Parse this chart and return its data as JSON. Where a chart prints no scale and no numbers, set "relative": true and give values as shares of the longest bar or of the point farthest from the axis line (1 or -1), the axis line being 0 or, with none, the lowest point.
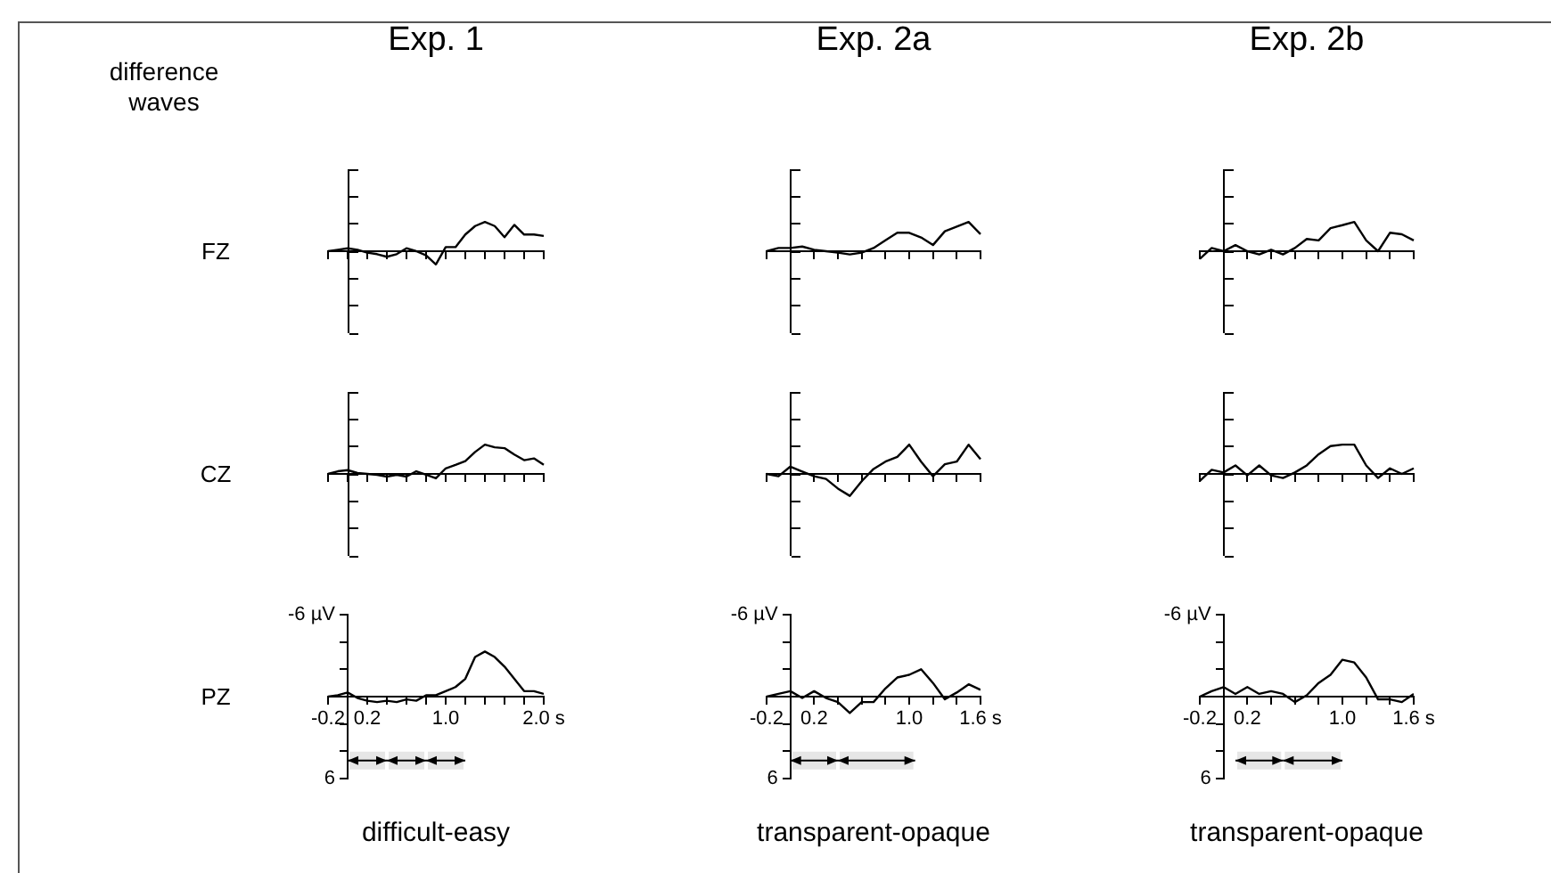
{
  "chart_data": [
    {
      "type": "line",
      "title": "Exp. 1",
      "ylabel": "FZ",
      "annotations": [
        "difference waves"
      ],
      "color": "#000000",
      "relative": true,
      "categories": [
        null,
        null,
        null,
        null,
        null,
        null,
        null,
        null,
        null,
        null,
        null,
        null,
        null,
        null,
        null,
        null,
        null,
        null,
        null,
        null,
        null,
        null,
        null
      ],
      "values": [
        0,
        0.05,
        0.1,
        0.05,
        -0.05,
        -0.1,
        -0.19,
        -0.1,
        0.1,
        0,
        -0.14,
        -0.45,
        0.14,
        0.14,
        0.57,
        0.86,
        1,
        0.86,
        0.48,
        0.9,
        0.57,
        0.57,
        0.52
      ]
    },
    {
      "type": "line",
      "title": "Exp. 2a",
      "color": "#000000",
      "relative": true,
      "categories": [
        null,
        null,
        null,
        null,
        null,
        null,
        null,
        null,
        null,
        null,
        null,
        null,
        null,
        null,
        null,
        null,
        null,
        null,
        null
      ],
      "values": [
        0,
        0.11,
        0.11,
        0.16,
        0.05,
        0,
        -0.05,
        -0.11,
        -0.05,
        0.11,
        0.37,
        0.63,
        0.63,
        0.47,
        0.21,
        0.68,
        0.84,
        1,
        0.58
      ]
    },
    {
      "type": "line",
      "title": "Exp. 2b",
      "color": "#000000",
      "relative": true,
      "categories": [
        null,
        null,
        null,
        null,
        null,
        null,
        null,
        null,
        null,
        null,
        null,
        null,
        null,
        null,
        null,
        null,
        null,
        null,
        null
      ],
      "values": [
        -0.26,
        0.11,
        0,
        0.21,
        0,
        -0.11,
        0.05,
        -0.11,
        0.11,
        0.42,
        0.37,
        0.79,
        0.89,
        1,
        0.37,
        0,
        0.63,
        0.58,
        0.37
      ]
    },
    {
      "type": "line",
      "ylabel": "CZ",
      "color": "#000000",
      "relative": true,
      "categories": [
        null,
        null,
        null,
        null,
        null,
        null,
        null,
        null,
        null,
        null,
        null,
        null,
        null,
        null,
        null,
        null,
        null,
        null,
        null,
        null,
        null,
        null,
        null
      ],
      "values": [
        0,
        0.09,
        0.13,
        0.03,
        0,
        -0.03,
        -0.09,
        -0.03,
        -0.09,
        0.09,
        -0.03,
        -0.15,
        0.19,
        0.31,
        0.44,
        0.75,
        1,
        0.91,
        0.88,
        0.66,
        0.47,
        0.53,
        0.31
      ]
    },
    {
      "type": "line",
      "color": "#000000",
      "relative": true,
      "categories": [
        null,
        null,
        null,
        null,
        null,
        null,
        null,
        null,
        null,
        null,
        null,
        null,
        null,
        null,
        null,
        null,
        null,
        null,
        null
      ],
      "values": [
        0,
        -0.08,
        0.25,
        0.08,
        -0.08,
        -0.17,
        -0.5,
        -0.75,
        -0.25,
        0.17,
        0.42,
        0.58,
        1,
        0.42,
        -0.08,
        0.33,
        0.42,
        1,
        0.5
      ]
    },
    {
      "type": "line",
      "color": "#000000",
      "relative": true,
      "categories": [
        null,
        null,
        null,
        null,
        null,
        null,
        null,
        null,
        null,
        null,
        null,
        null,
        null,
        null,
        null,
        null,
        null,
        null,
        null
      ],
      "values": [
        -0.24,
        0.14,
        0.05,
        0.29,
        -0.05,
        0.29,
        -0.05,
        -0.14,
        0.05,
        0.29,
        0.67,
        0.95,
        1,
        1,
        0.29,
        -0.14,
        0.19,
        0,
        0.19
      ]
    },
    {
      "type": "line",
      "ylabel": "PZ",
      "xlabel": "difficult-easy",
      "color": "#000000",
      "x": [
        -0.2,
        -0.1,
        0,
        0.1,
        0.2,
        0.3,
        0.4,
        0.5,
        0.6,
        0.7,
        0.8,
        0.9,
        1.0,
        1.1,
        1.2,
        1.3,
        1.4,
        1.5,
        1.6,
        1.7,
        1.8,
        1.9,
        2.0
      ],
      "values": [
        0,
        -0.1,
        -0.3,
        0.1,
        0.3,
        0.4,
        0.3,
        0.4,
        0.2,
        0.3,
        -0.1,
        -0.1,
        -0.4,
        -0.7,
        -1.3,
        -2.9,
        -3.3,
        -2.9,
        -2.2,
        -1.3,
        -0.4,
        -0.4,
        -0.2
      ],
      "xlim": [
        -0.2,
        2.0
      ],
      "ylim": [
        6,
        -6
      ],
      "xticks": [
        {
          "value": -0.2,
          "label": "-0.2"
        },
        {
          "value": 0,
          "label": null
        },
        {
          "value": 0.2,
          "label": "0.2"
        },
        {
          "value": 0.4,
          "label": null
        },
        {
          "value": 0.6,
          "label": null
        },
        {
          "value": 0.8,
          "label": null
        },
        {
          "value": 1.0,
          "label": "1.0"
        },
        {
          "value": 1.2,
          "label": null
        },
        {
          "value": 1.4,
          "label": null
        },
        {
          "value": 1.6,
          "label": null
        },
        {
          "value": 1.8,
          "label": null
        },
        {
          "value": 2.0,
          "label": "2.0 s"
        }
      ],
      "yticks": [
        {
          "value": -6,
          "label": "-6 µV"
        },
        {
          "value": -4,
          "label": null
        },
        {
          "value": -2,
          "label": null
        },
        {
          "value": 0,
          "label": null
        },
        {
          "value": 2,
          "label": null
        },
        {
          "value": 4,
          "label": null
        },
        {
          "value": 6,
          "label": "6"
        }
      ],
      "bands": [
        {
          "axis": "x",
          "from": 0,
          "to": 0.4,
          "color": "#e6e6e6"
        },
        {
          "axis": "x",
          "from": 0.4,
          "to": 0.8,
          "color": "#e6e6e6"
        },
        {
          "axis": "x",
          "from": 0.8,
          "to": 1.2,
          "color": "#e6e6e6"
        }
      ]
    },
    {
      "type": "line",
      "xlabel": "transparent-opaque",
      "color": "#000000",
      "x": [
        -0.2,
        -0.1,
        0,
        0.1,
        0.2,
        0.3,
        0.4,
        0.5,
        0.6,
        0.7,
        0.8,
        0.9,
        1.0,
        1.1,
        1.2,
        1.3,
        1.4,
        1.5,
        1.6
      ],
      "values": [
        0,
        -0.2,
        -0.4,
        0.1,
        -0.4,
        0.1,
        0.4,
        1.2,
        0.4,
        0.4,
        -0.6,
        -1.4,
        -1.6,
        -2.0,
        -1.0,
        0.2,
        -0.3,
        -0.9,
        -0.5
      ],
      "xlim": [
        -0.2,
        1.6
      ],
      "ylim": [
        6,
        -6
      ],
      "xticks": [
        {
          "value": -0.2,
          "label": "-0.2"
        },
        {
          "value": 0,
          "label": null
        },
        {
          "value": 0.2,
          "label": "0.2"
        },
        {
          "value": 0.4,
          "label": null
        },
        {
          "value": 0.6,
          "label": null
        },
        {
          "value": 0.8,
          "label": null
        },
        {
          "value": 1.0,
          "label": "1.0"
        },
        {
          "value": 1.2,
          "label": null
        },
        {
          "value": 1.4,
          "label": null
        },
        {
          "value": 1.6,
          "label": "1.6 s"
        }
      ],
      "yticks": [
        {
          "value": -6,
          "label": "-6 µV"
        },
        {
          "value": -4,
          "label": null
        },
        {
          "value": -2,
          "label": null
        },
        {
          "value": 0,
          "label": null
        },
        {
          "value": 2,
          "label": null
        },
        {
          "value": 4,
          "label": null
        },
        {
          "value": 6,
          "label": "6"
        }
      ],
      "bands": [
        {
          "axis": "x",
          "from": 0,
          "to": 0.4,
          "color": "#e6e6e6"
        },
        {
          "axis": "x",
          "from": 0.4,
          "to": 1.05,
          "color": "#e6e6e6"
        }
      ]
    },
    {
      "type": "line",
      "xlabel": "transparent-opaque",
      "color": "#000000",
      "x": [
        -0.2,
        -0.1,
        0,
        0.1,
        0.2,
        0.3,
        0.4,
        0.5,
        0.6,
        0.7,
        0.8,
        0.9,
        1.0,
        1.1,
        1.2,
        1.3,
        1.4,
        1.5,
        1.6
      ],
      "values": [
        0,
        -0.4,
        -0.7,
        -0.2,
        -0.7,
        -0.2,
        -0.4,
        -0.2,
        0.4,
        -0.1,
        -1.0,
        -1.6,
        -2.7,
        -2.5,
        -1.4,
        0.2,
        0.2,
        0.4,
        -0.2
      ],
      "xlim": [
        -0.2,
        1.6
      ],
      "ylim": [
        6,
        -6
      ],
      "xticks": [
        {
          "value": -0.2,
          "label": "-0.2"
        },
        {
          "value": 0,
          "label": null
        },
        {
          "value": 0.2,
          "label": "0.2"
        },
        {
          "value": 0.4,
          "label": null
        },
        {
          "value": 0.6,
          "label": null
        },
        {
          "value": 0.8,
          "label": null
        },
        {
          "value": 1.0,
          "label": "1.0"
        },
        {
          "value": 1.2,
          "label": null
        },
        {
          "value": 1.4,
          "label": null
        },
        {
          "value": 1.6,
          "label": "1.6 s"
        }
      ],
      "yticks": [
        {
          "value": -6,
          "label": "-6 µV"
        },
        {
          "value": -4,
          "label": null
        },
        {
          "value": -2,
          "label": null
        },
        {
          "value": 0,
          "label": null
        },
        {
          "value": 2,
          "label": null
        },
        {
          "value": 4,
          "label": null
        },
        {
          "value": 6,
          "label": "6"
        }
      ],
      "bands": [
        {
          "axis": "x",
          "from": 0.1,
          "to": 0.5,
          "color": "#e6e6e6"
        },
        {
          "axis": "x",
          "from": 0.5,
          "to": 1.0,
          "color": "#e6e6e6"
        }
      ]
    }
  ]
}
